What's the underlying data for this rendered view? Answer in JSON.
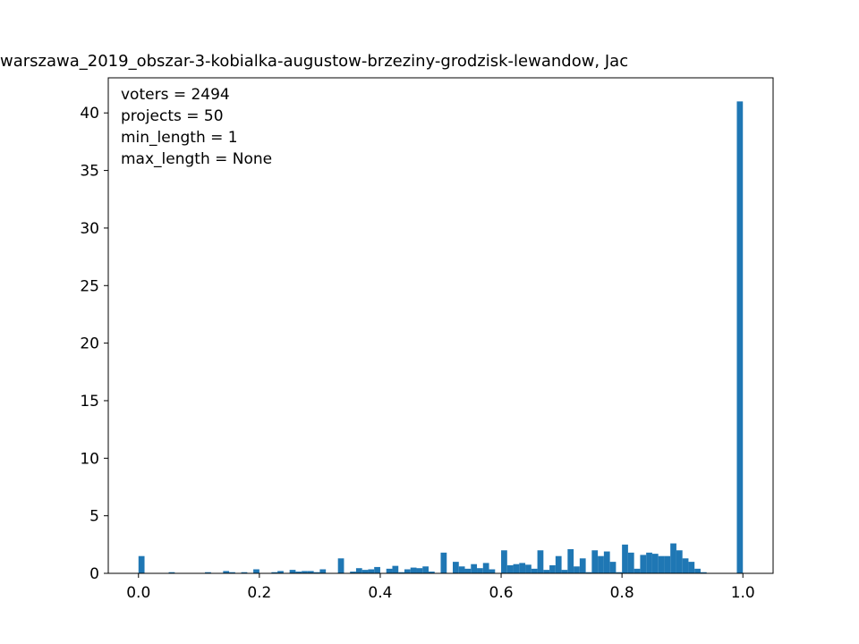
{
  "chart_data": {
    "type": "histogram",
    "title": "warszawa_2019_obszar-3-kobialka-augustow-brzeziny-grodzisk-lewandow, Jac",
    "annotations": [
      "voters = 2494",
      "projects = 50",
      "min_length = 1",
      "max_length = None"
    ],
    "color": "#1f77b4",
    "bins": [
      0,
      0.01,
      0.02,
      0.03,
      0.04,
      0.05,
      0.06,
      0.07,
      0.08,
      0.09,
      0.1,
      0.11,
      0.12,
      0.13,
      0.14,
      0.15,
      0.16,
      0.17,
      0.18,
      0.19,
      0.2,
      0.21,
      0.22,
      0.23,
      0.24,
      0.25,
      0.26,
      0.27,
      0.28,
      0.29,
      0.3,
      0.31,
      0.32,
      0.33,
      0.34,
      0.35,
      0.36,
      0.37,
      0.38,
      0.39,
      0.4,
      0.41,
      0.42,
      0.43,
      0.44,
      0.45,
      0.46,
      0.47,
      0.48,
      0.49,
      0.5,
      0.51,
      0.52,
      0.53,
      0.54,
      0.55,
      0.56,
      0.57,
      0.58,
      0.59,
      0.6,
      0.61,
      0.62,
      0.63,
      0.64,
      0.65,
      0.66,
      0.67,
      0.68,
      0.69,
      0.7,
      0.71,
      0.72,
      0.73,
      0.74,
      0.75,
      0.76,
      0.77,
      0.78,
      0.79,
      0.8,
      0.81,
      0.82,
      0.83,
      0.84,
      0.85,
      0.86,
      0.87,
      0.88,
      0.89,
      0.9,
      0.91,
      0.92,
      0.93,
      0.94,
      0.95,
      0.96,
      0.97,
      0.98,
      0.99,
      1.0
    ],
    "values": [
      1.5,
      0,
      0,
      0,
      0,
      0.1,
      0,
      0,
      0,
      0,
      0,
      0.1,
      0,
      0,
      0.2,
      0.1,
      0,
      0.1,
      0,
      0.35,
      0,
      0,
      0.1,
      0.2,
      0,
      0.3,
      0.15,
      0.2,
      0.2,
      0.1,
      0.35,
      0,
      0,
      1.3,
      0,
      0.15,
      0.45,
      0.3,
      0.35,
      0.55,
      0,
      0.4,
      0.65,
      0.1,
      0.35,
      0.5,
      0.45,
      0.6,
      0.15,
      0,
      1.8,
      0,
      1.0,
      0.6,
      0.4,
      0.8,
      0.45,
      0.9,
      0.35,
      0,
      2.0,
      0.7,
      0.8,
      0.9,
      0.75,
      0.4,
      2.0,
      0.3,
      0.7,
      1.5,
      0.3,
      2.1,
      0.6,
      1.3,
      0.1,
      2.0,
      1.5,
      1.9,
      1.0,
      0.1,
      2.5,
      1.8,
      0.4,
      1.6,
      1.8,
      1.7,
      1.5,
      1.5,
      2.6,
      2.0,
      1.3,
      1.0,
      0.4,
      0.1,
      0,
      0,
      0,
      0,
      0,
      41
    ],
    "xlim": [
      -0.05,
      1.05
    ],
    "ylim": [
      0,
      43.05
    ],
    "xticks": [
      {
        "value": 0,
        "label": "0.0"
      },
      {
        "value": 0.2,
        "label": "0.2"
      },
      {
        "value": 0.4,
        "label": "0.4"
      },
      {
        "value": 0.6,
        "label": "0.6"
      },
      {
        "value": 0.8,
        "label": "0.8"
      },
      {
        "value": 1.0,
        "label": "1.0"
      }
    ],
    "yticks": [
      0,
      5,
      10,
      15,
      20,
      25,
      30,
      35,
      40
    ]
  }
}
